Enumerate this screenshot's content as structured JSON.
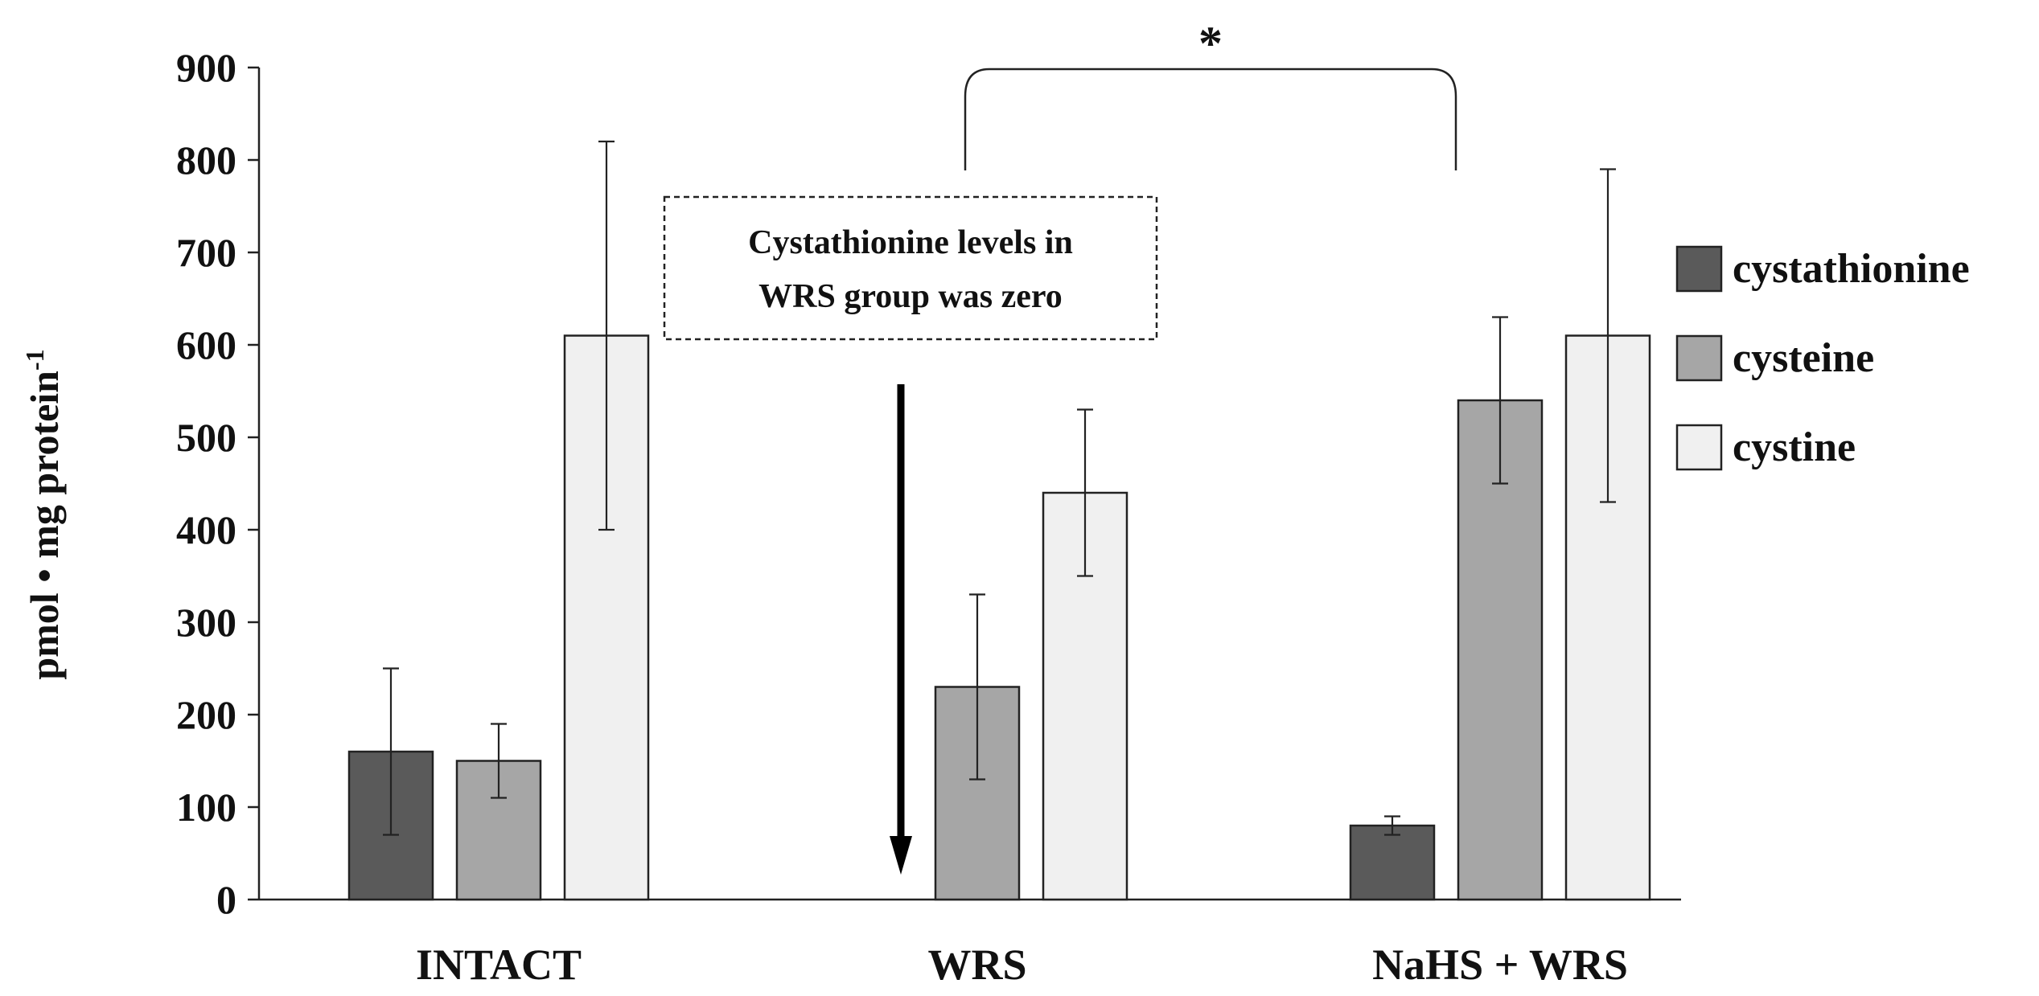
{
  "chart_data": {
    "type": "bar",
    "title": "",
    "xlabel": "",
    "ylabel": "pmol • mg protein",
    "ylabel_superscript": "-1",
    "ylim": [
      0,
      900
    ],
    "yticks": [
      0,
      100,
      200,
      300,
      400,
      500,
      600,
      700,
      800,
      900
    ],
    "categories": [
      "INTACT",
      "WRS",
      "NaHS + WRS"
    ],
    "series": [
      {
        "name": "cystathionine",
        "color": "#5a5a5a",
        "values": [
          160,
          0,
          80
        ],
        "errors": [
          90,
          0,
          10
        ]
      },
      {
        "name": "cysteine",
        "color": "#a6a6a6",
        "values": [
          150,
          230,
          540
        ],
        "errors": [
          40,
          100,
          90
        ]
      },
      {
        "name": "cystine",
        "color": "#f0f0f0",
        "values": [
          610,
          440,
          610
        ],
        "errors": [
          210,
          90,
          180
        ]
      }
    ],
    "legend_position": "right",
    "grid": false,
    "annotations": {
      "note_line1": "Cystathionine levels in",
      "note_line2": "WRS group was zero",
      "significance": "*",
      "significance_between": [
        "WRS",
        "NaHS + WRS"
      ]
    }
  }
}
